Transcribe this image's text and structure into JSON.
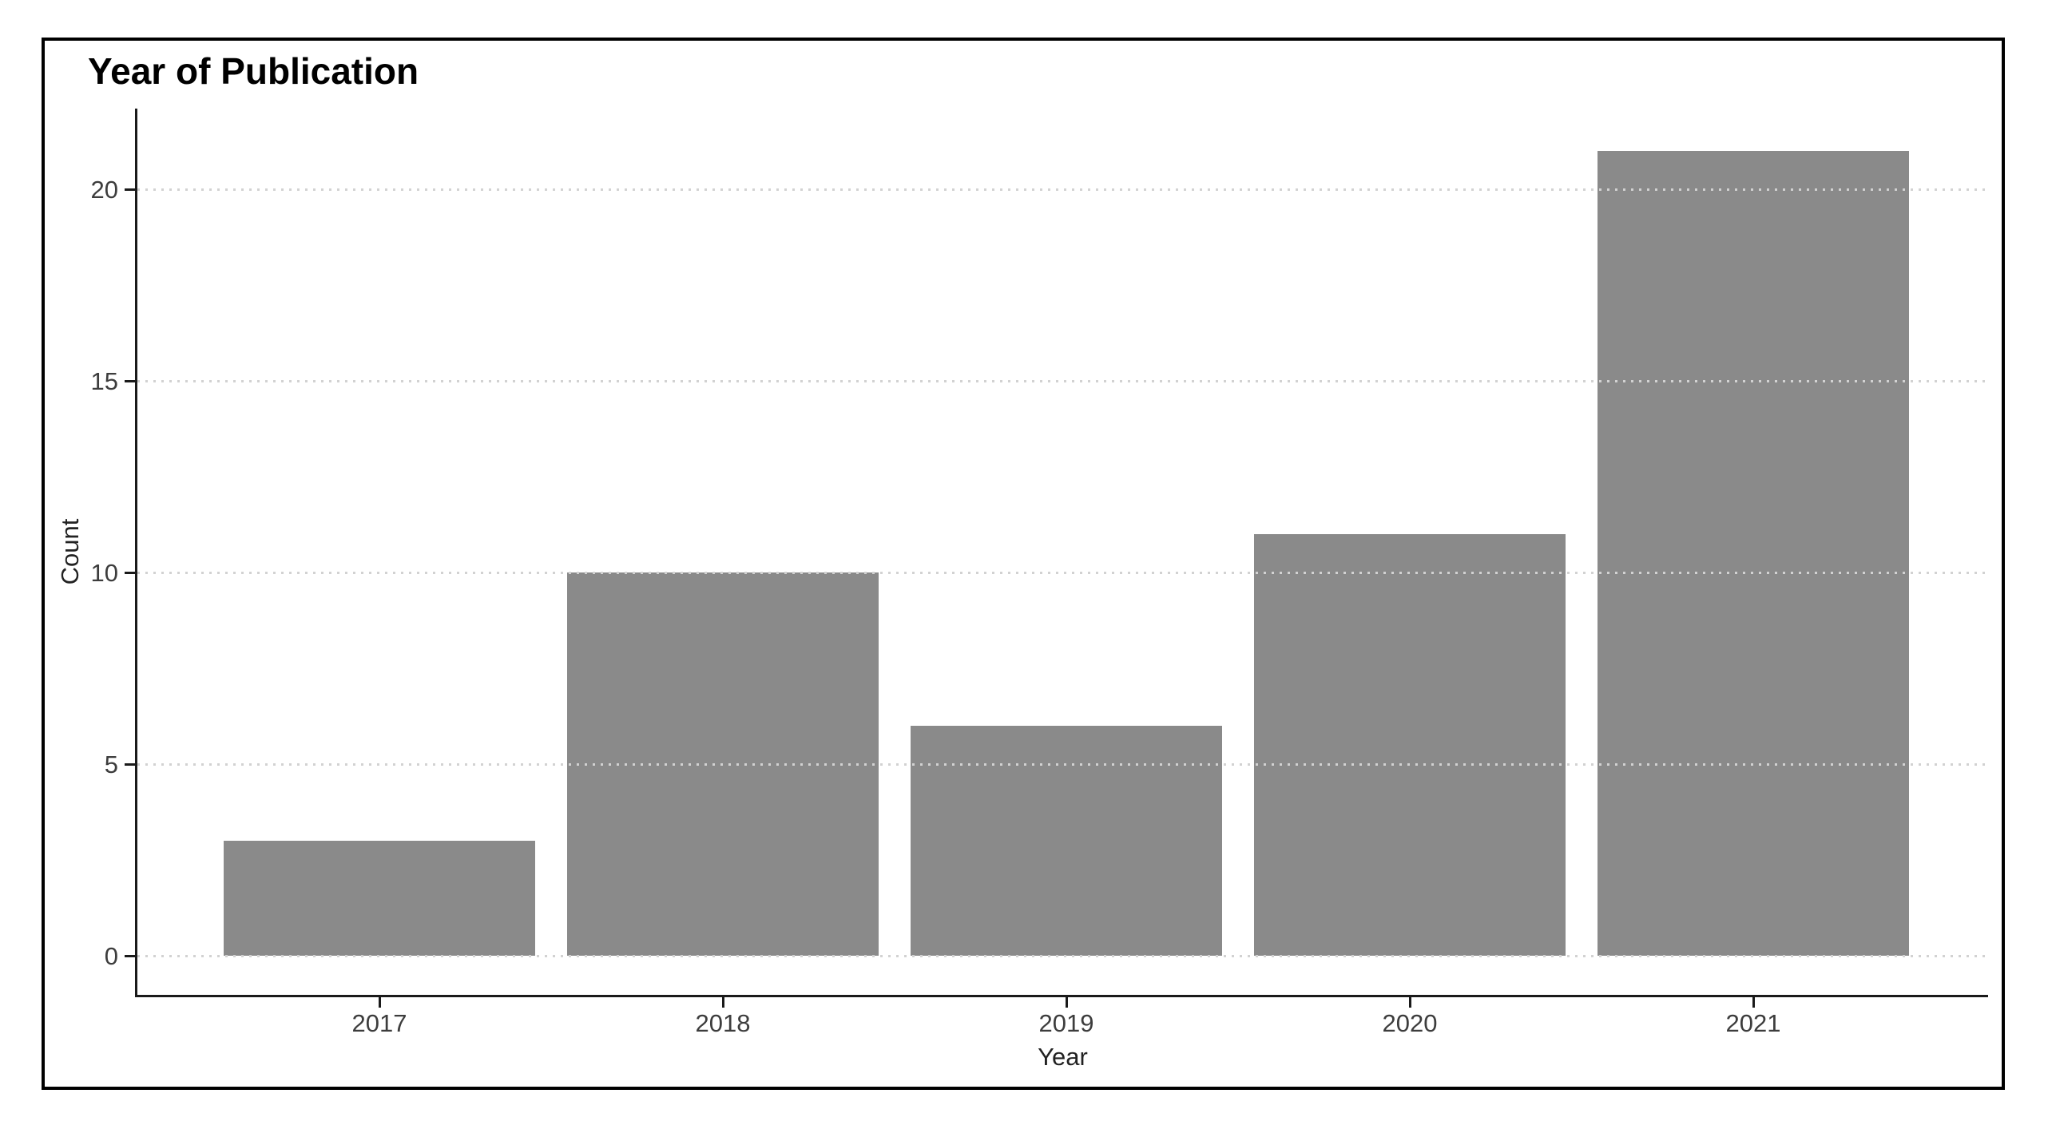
{
  "window": {
    "background_color": "#ffffff",
    "border_color": "#000000"
  },
  "chart_data": {
    "type": "bar",
    "title": "Year of Publication",
    "xlabel": "Year",
    "ylabel": "Count",
    "categories": [
      "2017",
      "2018",
      "2019",
      "2020",
      "2021"
    ],
    "values": [
      3,
      10,
      6,
      11,
      21
    ],
    "yticks": [
      0,
      5,
      10,
      15,
      20
    ],
    "ylim": [
      -1.05,
      22.05
    ],
    "bar_color": "#8a8a8a",
    "grid": "horizontal dotted lines at y ticks, drawn over bars",
    "gridline_color": "#d2d2d2",
    "axis_line_color": "#1a1a1a",
    "tick_label_color": "#3d3d3d",
    "title_color": "#000000",
    "legend_position": "none"
  }
}
